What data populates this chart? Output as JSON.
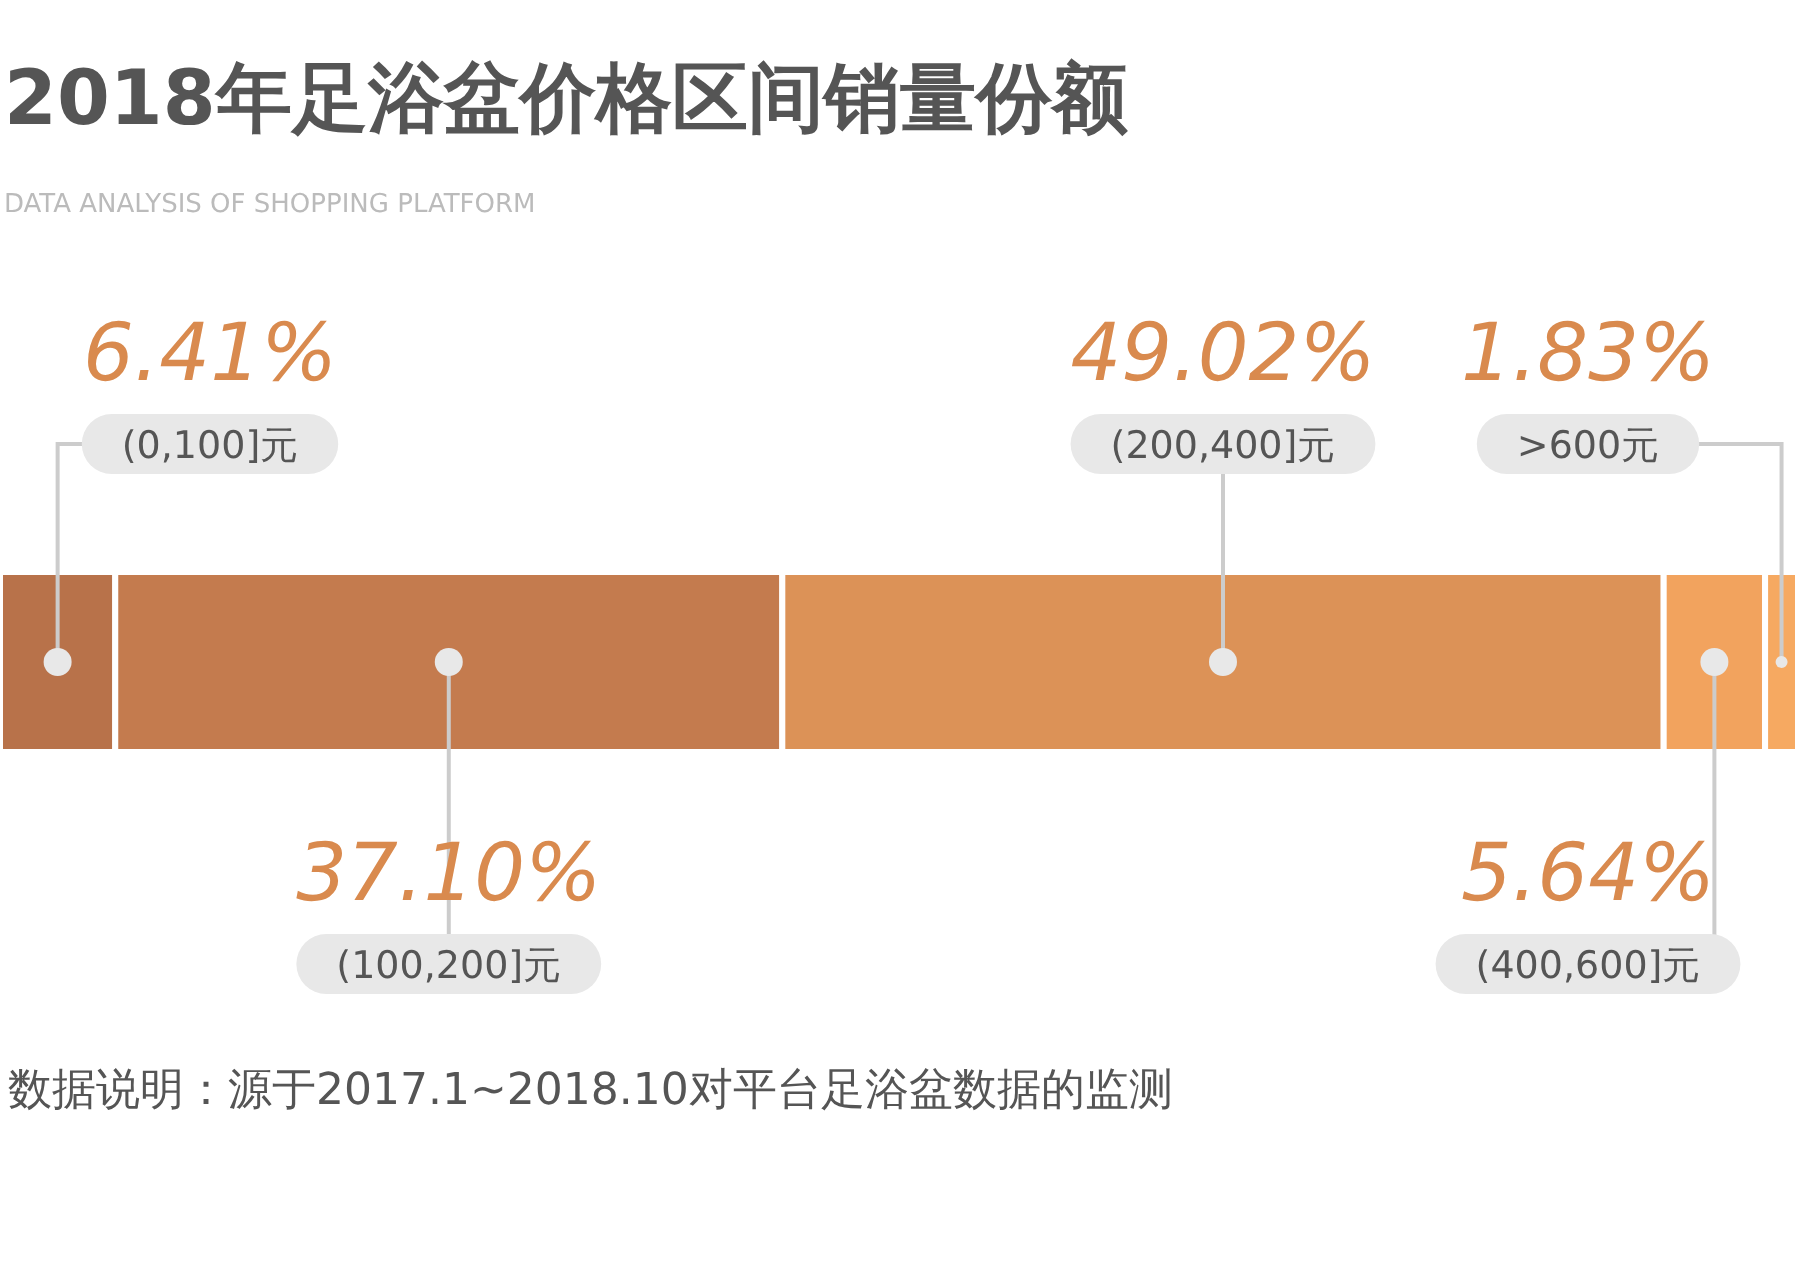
{
  "chart_data": {
    "type": "bar",
    "title": "2018年足浴盆价格区间销量份额",
    "subtitle": "DATA ANALYSIS OF SHOPPING PLATFORM",
    "categories": [
      null
    ],
    "stacked": true,
    "orientation": "horizontal",
    "series": [
      {
        "name": "(0,100]元",
        "color": "#b8724a",
        "values": [
          6.41
        ],
        "value_labels": [
          "6.41%"
        ]
      },
      {
        "name": "(100,200]元",
        "color": "#c47b4e",
        "values": [
          37.1
        ],
        "value_labels": [
          "37.10%"
        ]
      },
      {
        "name": "(200,400]元",
        "color": "#dc9257",
        "values": [
          49.02
        ],
        "value_labels": [
          "49.02%"
        ]
      },
      {
        "name": "(400,600]元",
        "color": "#f2a35e",
        "values": [
          5.64
        ],
        "value_labels": [
          "5.64%"
        ]
      },
      {
        "name": ">600元",
        "color": "#f6a961",
        "values": [
          1.83
        ],
        "value_labels": [
          "1.83%"
        ]
      }
    ],
    "annotations": [
      "数据说明：源于2017.1~2018.10对平台足浴盆数据的监测"
    ]
  }
}
